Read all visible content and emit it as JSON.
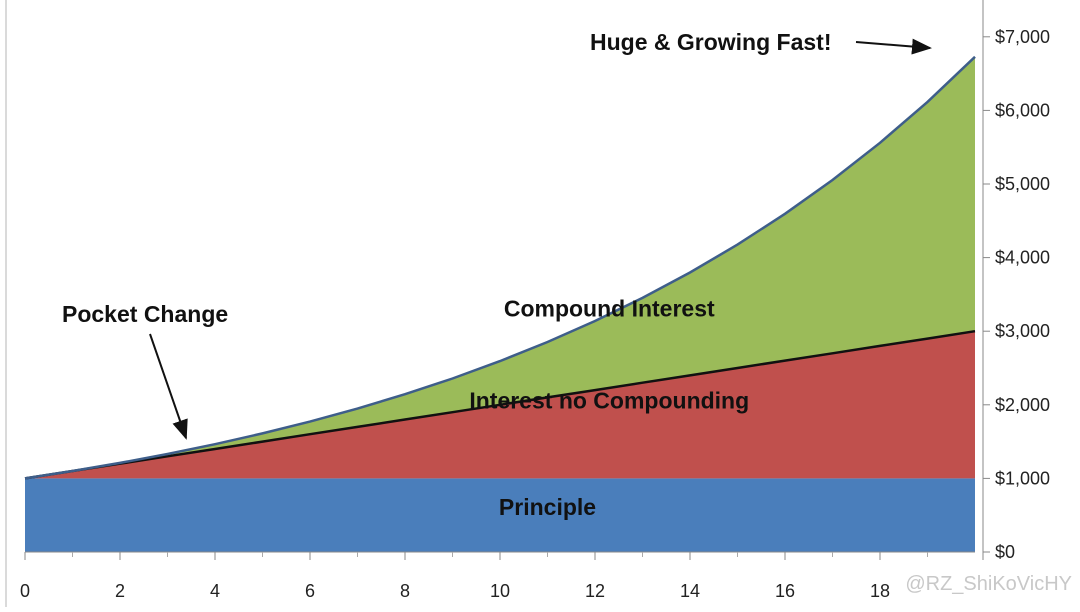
{
  "chart_data": {
    "type": "area",
    "stacked": true,
    "x": [
      0,
      1,
      2,
      3,
      4,
      5,
      6,
      7,
      8,
      9,
      10,
      11,
      12,
      13,
      14,
      15,
      16,
      17,
      18,
      19,
      20
    ],
    "series": [
      {
        "name": "Principle",
        "color": "#4a7ebb",
        "values": [
          1000,
          1000,
          1000,
          1000,
          1000,
          1000,
          1000,
          1000,
          1000,
          1000,
          1000,
          1000,
          1000,
          1000,
          1000,
          1000,
          1000,
          1000,
          1000,
          1000,
          1000
        ]
      },
      {
        "name": "Interest no Compounding",
        "color": "#c0504d",
        "values": [
          0,
          100,
          200,
          300,
          400,
          500,
          600,
          700,
          800,
          900,
          1000,
          1100,
          1200,
          1300,
          1400,
          1500,
          1600,
          1700,
          1800,
          1900,
          2000
        ]
      },
      {
        "name": "Compound Interest",
        "color": "#9bbb59",
        "values": [
          0,
          0,
          10,
          31,
          64,
          111,
          172,
          249,
          344,
          458,
          594,
          753,
          938,
          1152,
          1397,
          1677,
          1995,
          2355,
          2760,
          3216,
          3728
        ]
      }
    ],
    "xticks": [
      "0",
      "2",
      "4",
      "6",
      "8",
      "10",
      "12",
      "14",
      "16",
      "18"
    ],
    "yticks": [
      "$0",
      "$1,000",
      "$2,000",
      "$3,000",
      "$4,000",
      "$5,000",
      "$6,000",
      "$7,000"
    ],
    "xlim": [
      0,
      20
    ],
    "ylim": [
      0,
      7500
    ],
    "y_axis_side": "right",
    "annotations": {
      "pocket_change": "Pocket Change",
      "huge_growing": "Huge & Growing Fast!"
    },
    "grid": false
  },
  "watermark": "@RZ_ShiKoVicHY"
}
